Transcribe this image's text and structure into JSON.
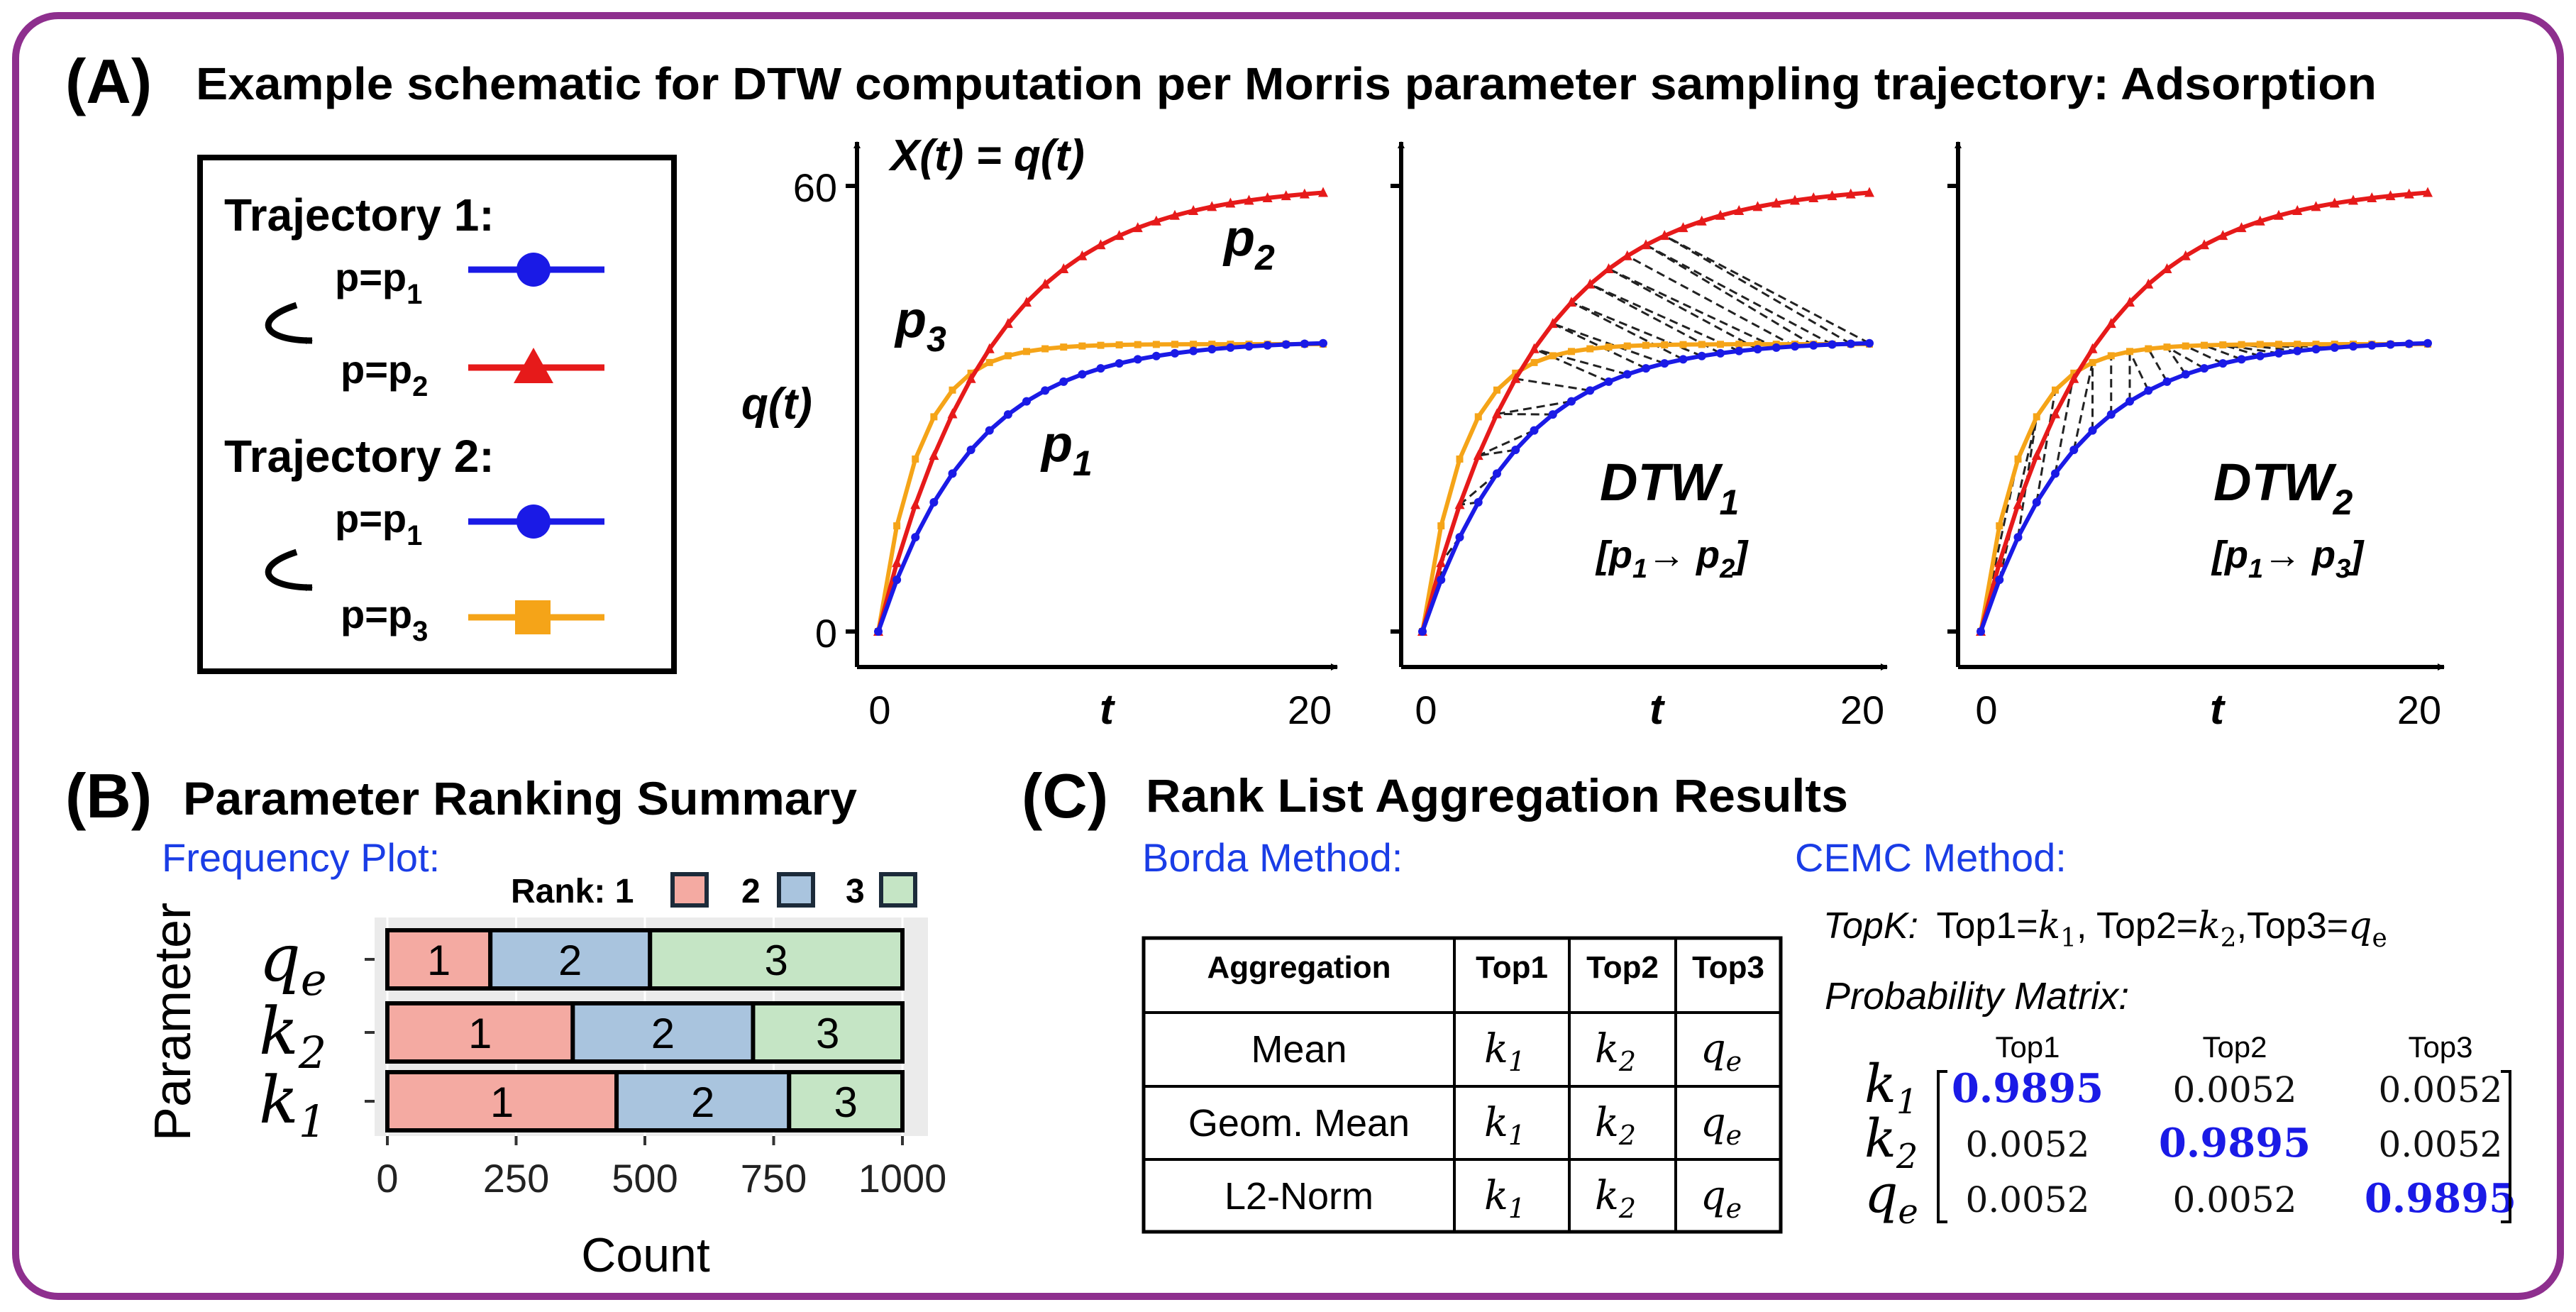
{
  "colors": {
    "frame": "#8e2f8e",
    "p1": "#1a1ae6",
    "p2": "#e61a1a",
    "p3": "#f5a418",
    "rank1": "#f4aaa2",
    "rank2": "#a9c4de",
    "rank3": "#c5e5c5",
    "link": "#1a3de6",
    "bold_blue": "#1a1ae6",
    "panel_bg": "#ebebeb"
  },
  "panel_a": {
    "letter": "(A)",
    "title": "Example schematic for DTW computation per Morris parameter sampling trajectory: Adsorption",
    "legend": {
      "traj1": "Trajectory 1:",
      "traj2": "Trajectory 2:",
      "p_eq": "p=p",
      "sub1": "1",
      "sub2": "2",
      "sub3": "3"
    },
    "plot1": {
      "fn_label": "X(t) = q(t)",
      "ylabel": "q(t)",
      "ytick_top": "60",
      "ytick_bottom": "0",
      "xtick_left": "0",
      "xtick_right": "20",
      "xlabel": "t",
      "label_p": "p",
      "sub1": "1",
      "sub2": "2",
      "sub3": "3"
    },
    "plot2": {
      "dtw": "DTW",
      "dtw_sub": "1",
      "pair_open": "[p",
      "pair_a": "1",
      "pair_arrow": "→ p",
      "pair_b": "2",
      "pair_close": "]",
      "xtick_left": "0",
      "xtick_right": "20",
      "xlabel": "t"
    },
    "plot3": {
      "dtw": "DTW",
      "dtw_sub": "2",
      "pair_open": "[p",
      "pair_a": "1",
      "pair_arrow": "→ p",
      "pair_b": "3",
      "pair_close": "]",
      "xtick_left": "0",
      "xtick_right": "20",
      "xlabel": "t"
    }
  },
  "panel_b": {
    "letter": "(B)",
    "title": "Parameter Ranking Summary",
    "subtitle": "Frequency Plot:",
    "rank_label": "Rank: 1",
    "rank2": "2",
    "rank3": "3",
    "ylabel": "Parameter",
    "xlabel": "Count",
    "xticks": [
      "0",
      "250",
      "500",
      "750",
      "1000"
    ],
    "param_letters": [
      "q",
      "k",
      "k"
    ],
    "param_subs": [
      "e",
      "2",
      "1"
    ]
  },
  "chart_data": {
    "type": "bar",
    "orientation": "horizontal",
    "stacked": true,
    "xlabel": "Count",
    "ylabel": "Parameter",
    "xlim": [
      0,
      1000
    ],
    "categories": [
      "qe",
      "k2",
      "k1"
    ],
    "series": [
      {
        "name": "1",
        "values": [
          200,
          360,
          445
        ]
      },
      {
        "name": "2",
        "values": [
          310,
          350,
          335
        ]
      },
      {
        "name": "3",
        "values": [
          490,
          290,
          220
        ]
      }
    ],
    "legend": "top"
  },
  "panel_c": {
    "letter": "(C)",
    "title": "Rank List Aggregation Results",
    "borda_title": "Borda Method:",
    "cemc_title": "CEMC Method:",
    "table": {
      "headers": [
        "Aggregation",
        "Top1",
        "Top2",
        "Top3"
      ],
      "rows": [
        {
          "name": "Mean",
          "cells": [
            [
              "k",
              "1"
            ],
            [
              "k",
              "2"
            ],
            [
              "q",
              "e"
            ]
          ]
        },
        {
          "name": "Geom. Mean",
          "cells": [
            [
              "k",
              "1"
            ],
            [
              "k",
              "2"
            ],
            [
              "q",
              "e"
            ]
          ]
        },
        {
          "name": "L2-Norm",
          "cells": [
            [
              "k",
              "1"
            ],
            [
              "k",
              "2"
            ],
            [
              "q",
              "e"
            ]
          ]
        }
      ]
    },
    "topk": {
      "label": "TopK:",
      "t1": "Top1=",
      "t2": ", Top2=",
      "t3": ",Top3=",
      "v1": [
        "k",
        "1"
      ],
      "v2": [
        "k",
        "2"
      ],
      "v3": [
        "q",
        "e"
      ],
      "sep": ","
    },
    "prob_title": "Probability Matrix:",
    "matrix": {
      "cols": [
        "Top1",
        "Top2",
        "Top3"
      ],
      "rows": [
        {
          "letter": "k",
          "sub": "1",
          "vals": [
            "0.9895",
            "0.0052",
            "0.0052"
          ]
        },
        {
          "letter": "k",
          "sub": "2",
          "vals": [
            "0.0052",
            "0.9895",
            "0.0052"
          ]
        },
        {
          "letter": "q",
          "sub": "e",
          "vals": [
            "0.0052",
            "0.0052",
            "0.9895"
          ]
        }
      ]
    }
  }
}
